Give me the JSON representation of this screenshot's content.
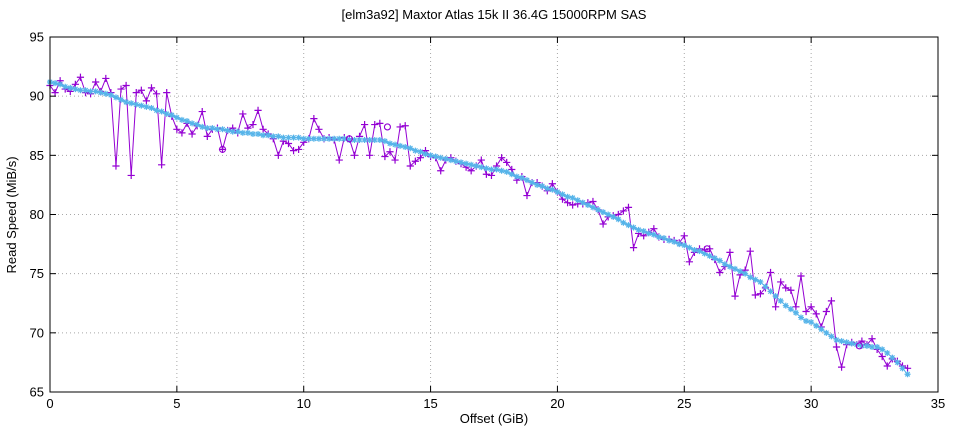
{
  "chart_data": {
    "type": "line",
    "title": "[elm3a92] Maxtor Atlas 15k II 36.4G 15000RPM SAS",
    "xlabel": "Offset (GiB)",
    "ylabel": "Read Speed (MiB/s)",
    "xlim": [
      0,
      35
    ],
    "ylim": [
      65,
      95
    ],
    "xticks": [
      0,
      5,
      10,
      15,
      20,
      25,
      30,
      35
    ],
    "yticks": [
      65,
      70,
      75,
      80,
      85,
      90,
      95
    ],
    "grid": true,
    "grid_color": "#a8a8a8",
    "legend_position": "none",
    "x_start": 0,
    "x_step": 0.2,
    "series": [
      {
        "name": "read-speed-raw",
        "marker": "plus",
        "color": "#9400d3",
        "values": [
          90.9,
          90.3,
          91.3,
          90.6,
          90.4,
          91.0,
          91.6,
          90.3,
          90.2,
          91.2,
          90.4,
          91.5,
          90.3,
          84.1,
          90.6,
          90.9,
          83.3,
          90.3,
          90.5,
          89.6,
          90.7,
          90.2,
          84.2,
          90.3,
          88.3,
          87.2,
          86.9,
          87.7,
          86.8,
          87.5,
          88.7,
          86.6,
          87.2,
          87.3,
          85.5,
          87.1,
          87.3,
          86.9,
          88.5,
          87.3,
          87.6,
          88.8,
          87.2,
          86.8,
          86.4,
          85.0,
          86.2,
          86.0,
          85.4,
          85.5,
          86.1,
          86.4,
          88.1,
          87.2,
          86.4,
          86.5,
          86.3,
          84.6,
          86.5,
          86.4,
          85.0,
          86.6,
          87.6,
          85.0,
          87.6,
          87.7,
          84.9,
          85.3,
          84.6,
          87.4,
          87.5,
          84.1,
          84.5,
          84.8,
          85.4,
          84.9,
          84.8,
          83.7,
          84.6,
          84.8,
          84.5,
          84.3,
          84.0,
          83.7,
          84.1,
          84.6,
          83.4,
          83.3,
          84.1,
          84.8,
          84.4,
          83.8,
          82.9,
          83.2,
          81.6,
          82.7,
          82.7,
          82.4,
          82.0,
          82.6,
          81.9,
          81.3,
          81.0,
          80.8,
          80.9,
          80.9,
          81.0,
          81.1,
          80.4,
          79.2,
          79.8,
          79.9,
          80.0,
          80.3,
          80.6,
          77.2,
          78.4,
          78.2,
          78.5,
          78.8,
          78.1,
          77.9,
          77.9,
          77.8,
          77.6,
          78.2,
          76.0,
          76.8,
          77.1,
          77.0,
          77.1,
          76.2,
          75.1,
          75.6,
          76.8,
          73.1,
          74.9,
          75.3,
          76.9,
          73.2,
          73.3,
          73.8,
          75.1,
          72.2,
          74.3,
          73.8,
          73.6,
          72.2,
          74.8,
          71.8,
          72.2,
          71.6,
          70.5,
          71.8,
          72.7,
          68.8,
          67.1,
          69.0,
          69.2,
          69.0,
          69.3,
          69.0,
          69.5,
          68.6,
          68.0,
          67.2,
          67.8,
          67.6,
          67.2,
          67.0
        ]
      },
      {
        "name": "read-speed-smoothed",
        "marker": "asterisk",
        "color": "#56b4e9",
        "values": [
          91.2,
          91.1,
          91.0,
          90.8,
          90.7,
          90.6,
          90.5,
          90.5,
          90.4,
          90.4,
          90.3,
          90.2,
          90.1,
          89.9,
          89.7,
          89.5,
          89.4,
          89.3,
          89.2,
          89.1,
          89.0,
          88.8,
          88.7,
          88.5,
          88.4,
          88.2,
          88.0,
          87.9,
          87.7,
          87.6,
          87.4,
          87.3,
          87.3,
          87.2,
          87.2,
          87.1,
          87.0,
          87.0,
          86.9,
          86.9,
          86.8,
          86.8,
          86.7,
          86.7,
          86.6,
          86.6,
          86.5,
          86.5,
          86.5,
          86.5,
          86.4,
          86.4,
          86.4,
          86.4,
          86.4,
          86.4,
          86.4,
          86.4,
          86.4,
          86.3,
          86.3,
          86.3,
          86.3,
          86.3,
          86.3,
          86.3,
          86.2,
          86.0,
          85.9,
          85.8,
          85.7,
          85.6,
          85.4,
          85.3,
          85.1,
          85.0,
          84.9,
          84.8,
          84.7,
          84.6,
          84.5,
          84.4,
          84.3,
          84.2,
          84.1,
          84.0,
          83.9,
          83.8,
          83.8,
          83.7,
          83.6,
          83.4,
          83.2,
          83.1,
          82.9,
          82.7,
          82.5,
          82.4,
          82.2,
          82.1,
          81.9,
          81.7,
          81.5,
          81.4,
          81.2,
          81.0,
          80.8,
          80.6,
          80.4,
          80.2,
          80.0,
          79.8,
          79.6,
          79.3,
          79.1,
          78.9,
          78.7,
          78.6,
          78.4,
          78.3,
          78.1,
          78.0,
          77.8,
          77.7,
          77.5,
          77.4,
          77.2,
          77.0,
          76.9,
          76.7,
          76.5,
          76.3,
          76.1,
          75.8,
          75.6,
          75.4,
          75.2,
          75.0,
          74.7,
          74.5,
          74.3,
          73.9,
          73.5,
          73.1,
          72.7,
          72.3,
          72.0,
          71.7,
          71.3,
          71.0,
          70.9,
          70.6,
          70.3,
          70.0,
          69.7,
          69.4,
          69.3,
          69.2,
          69.1,
          69.0,
          68.9,
          68.9,
          68.8,
          68.8,
          68.6,
          68.3,
          67.9,
          67.5,
          67.0,
          66.5
        ]
      },
      {
        "name": "circle-points",
        "marker": "circle",
        "color": "#9400d3",
        "points": [
          [
            6.8,
            85.5
          ],
          [
            11.8,
            86.4
          ],
          [
            13.3,
            87.4
          ],
          [
            25.9,
            77.1
          ],
          [
            31.9,
            68.9
          ]
        ]
      }
    ]
  }
}
